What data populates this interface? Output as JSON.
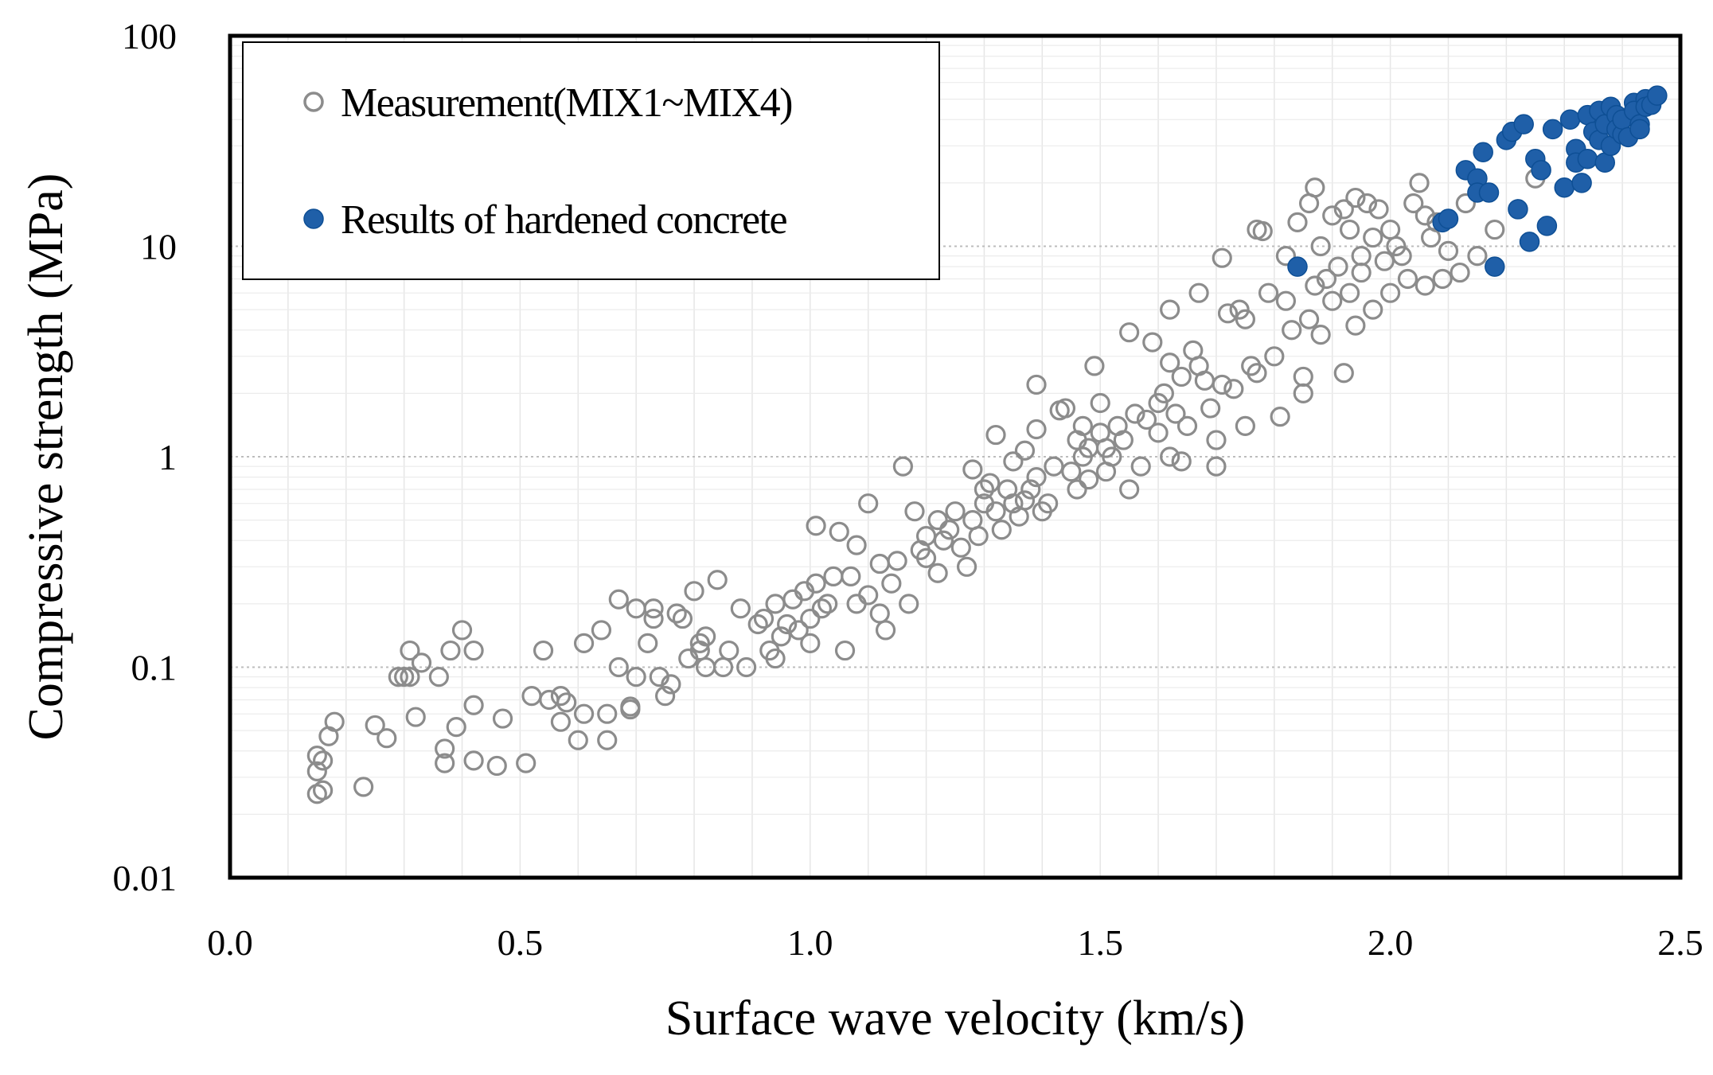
{
  "chart_data": {
    "type": "scatter",
    "title": "",
    "xlabel": "Surface wave velocity (km/s)",
    "ylabel": "Compressive strength (MPa)",
    "xlim": [
      0.0,
      2.5
    ],
    "ylim": [
      0.01,
      100
    ],
    "yscale": "log",
    "grid": true,
    "legend_position": "top-left",
    "x_ticks": [
      "0.0",
      "0.5",
      "1.0",
      "1.5",
      "2.0",
      "2.5"
    ],
    "y_ticks": [
      "0.01",
      "0.1",
      "1",
      "10",
      "100"
    ],
    "colors": {
      "measurement": "#8c8c8c",
      "hardened": "#1f5fa8"
    },
    "series": [
      {
        "name": "Measurement(MIX1~MIX4)",
        "marker": "open-circle",
        "points": [
          [
            0.15,
            0.025
          ],
          [
            0.16,
            0.026
          ],
          [
            0.15,
            0.032
          ],
          [
            0.16,
            0.036
          ],
          [
            0.15,
            0.038
          ],
          [
            0.17,
            0.047
          ],
          [
            0.18,
            0.055
          ],
          [
            0.23,
            0.027
          ],
          [
            0.25,
            0.053
          ],
          [
            0.27,
            0.046
          ],
          [
            0.29,
            0.09
          ],
          [
            0.3,
            0.09
          ],
          [
            0.31,
            0.09
          ],
          [
            0.31,
            0.12
          ],
          [
            0.33,
            0.105
          ],
          [
            0.36,
            0.09
          ],
          [
            0.32,
            0.058
          ],
          [
            0.37,
            0.035
          ],
          [
            0.37,
            0.041
          ],
          [
            0.39,
            0.052
          ],
          [
            0.4,
            0.15
          ],
          [
            0.38,
            0.12
          ],
          [
            0.42,
            0.12
          ],
          [
            0.42,
            0.066
          ],
          [
            0.42,
            0.036
          ],
          [
            0.46,
            0.034
          ],
          [
            0.47,
            0.057
          ],
          [
            0.51,
            0.035
          ],
          [
            0.52,
            0.073
          ],
          [
            0.54,
            0.12
          ],
          [
            0.55,
            0.07
          ],
          [
            0.57,
            0.055
          ],
          [
            0.57,
            0.073
          ],
          [
            0.58,
            0.068
          ],
          [
            0.6,
            0.045
          ],
          [
            0.61,
            0.13
          ],
          [
            0.61,
            0.06
          ],
          [
            0.64,
            0.15
          ],
          [
            0.65,
            0.06
          ],
          [
            0.65,
            0.045
          ],
          [
            0.67,
            0.1
          ],
          [
            0.67,
            0.21
          ],
          [
            0.69,
            0.065
          ],
          [
            0.69,
            0.063
          ],
          [
            0.7,
            0.09
          ],
          [
            0.7,
            0.19
          ],
          [
            0.72,
            0.13
          ],
          [
            0.73,
            0.17
          ],
          [
            0.73,
            0.19
          ],
          [
            0.74,
            0.09
          ],
          [
            0.75,
            0.073
          ],
          [
            0.76,
            0.083
          ],
          [
            0.77,
            0.18
          ],
          [
            0.78,
            0.17
          ],
          [
            0.79,
            0.11
          ],
          [
            0.8,
            0.23
          ],
          [
            0.81,
            0.12
          ],
          [
            0.81,
            0.13
          ],
          [
            0.82,
            0.1
          ],
          [
            0.82,
            0.14
          ],
          [
            0.84,
            0.26
          ],
          [
            0.85,
            0.1
          ],
          [
            0.86,
            0.12
          ],
          [
            0.88,
            0.19
          ],
          [
            0.89,
            0.1
          ],
          [
            0.91,
            0.16
          ],
          [
            0.92,
            0.17
          ],
          [
            0.93,
            0.12
          ],
          [
            0.94,
            0.2
          ],
          [
            0.94,
            0.11
          ],
          [
            0.95,
            0.14
          ],
          [
            0.96,
            0.16
          ],
          [
            0.97,
            0.21
          ],
          [
            0.98,
            0.15
          ],
          [
            0.99,
            0.23
          ],
          [
            1.0,
            0.17
          ],
          [
            1.01,
            0.25
          ],
          [
            1.02,
            0.19
          ],
          [
            1.03,
            0.2
          ],
          [
            1.0,
            0.13
          ],
          [
            1.01,
            0.47
          ],
          [
            1.04,
            0.27
          ],
          [
            1.05,
            0.44
          ],
          [
            1.06,
            0.12
          ],
          [
            1.07,
            0.27
          ],
          [
            1.08,
            0.2
          ],
          [
            1.08,
            0.38
          ],
          [
            1.1,
            0.22
          ],
          [
            1.1,
            0.6
          ],
          [
            1.12,
            0.18
          ],
          [
            1.12,
            0.31
          ],
          [
            1.13,
            0.15
          ],
          [
            1.14,
            0.25
          ],
          [
            1.15,
            0.32
          ],
          [
            1.16,
            0.9
          ],
          [
            1.17,
            0.2
          ],
          [
            1.18,
            0.55
          ],
          [
            1.19,
            0.36
          ],
          [
            1.2,
            0.42
          ],
          [
            1.2,
            0.33
          ],
          [
            1.22,
            0.28
          ],
          [
            1.22,
            0.5
          ],
          [
            1.23,
            0.4
          ],
          [
            1.24,
            0.45
          ],
          [
            1.25,
            0.55
          ],
          [
            1.26,
            0.37
          ],
          [
            1.27,
            0.3
          ],
          [
            1.28,
            0.5
          ],
          [
            1.28,
            0.87
          ],
          [
            1.29,
            0.42
          ],
          [
            1.3,
            0.6
          ],
          [
            1.3,
            0.7
          ],
          [
            1.31,
            0.75
          ],
          [
            1.32,
            0.55
          ],
          [
            1.32,
            1.27
          ],
          [
            1.33,
            0.45
          ],
          [
            1.34,
            0.7
          ],
          [
            1.35,
            0.95
          ],
          [
            1.35,
            0.6
          ],
          [
            1.36,
            0.52
          ],
          [
            1.37,
            0.62
          ],
          [
            1.37,
            1.07
          ],
          [
            1.38,
            0.7
          ],
          [
            1.39,
            0.8
          ],
          [
            1.39,
            2.2
          ],
          [
            1.39,
            1.35
          ],
          [
            1.4,
            0.55
          ],
          [
            1.41,
            0.6
          ],
          [
            1.42,
            0.9
          ],
          [
            1.43,
            1.66
          ],
          [
            1.44,
            1.7
          ],
          [
            1.45,
            0.85
          ],
          [
            1.46,
            1.2
          ],
          [
            1.46,
            0.7
          ],
          [
            1.47,
            1.0
          ],
          [
            1.47,
            1.4
          ],
          [
            1.48,
            1.1
          ],
          [
            1.48,
            0.78
          ],
          [
            1.49,
            2.7
          ],
          [
            1.5,
            1.3
          ],
          [
            1.5,
            1.8
          ],
          [
            1.51,
            1.1
          ],
          [
            1.51,
            0.85
          ],
          [
            1.52,
            1.0
          ],
          [
            1.53,
            1.4
          ],
          [
            1.54,
            1.2
          ],
          [
            1.55,
            0.7
          ],
          [
            1.55,
            3.9
          ],
          [
            1.56,
            1.6
          ],
          [
            1.57,
            0.9
          ],
          [
            1.58,
            1.5
          ],
          [
            1.59,
            3.5
          ],
          [
            1.6,
            1.3
          ],
          [
            1.6,
            1.8
          ],
          [
            1.61,
            2.0
          ],
          [
            1.62,
            1.0
          ],
          [
            1.62,
            5.0
          ],
          [
            1.62,
            2.8
          ],
          [
            1.63,
            1.6
          ],
          [
            1.64,
            2.4
          ],
          [
            1.64,
            0.95
          ],
          [
            1.65,
            1.4
          ],
          [
            1.66,
            3.2
          ],
          [
            1.67,
            2.7
          ],
          [
            1.67,
            6.0
          ],
          [
            1.68,
            2.3
          ],
          [
            1.69,
            1.7
          ],
          [
            1.7,
            0.9
          ],
          [
            1.7,
            1.2
          ],
          [
            1.71,
            2.2
          ],
          [
            1.71,
            8.8
          ],
          [
            1.72,
            4.8
          ],
          [
            1.73,
            2.1
          ],
          [
            1.74,
            5.0
          ],
          [
            1.75,
            1.4
          ],
          [
            1.75,
            4.5
          ],
          [
            1.76,
            2.7
          ],
          [
            1.77,
            2.5
          ],
          [
            1.77,
            12.0
          ],
          [
            1.78,
            11.8
          ],
          [
            1.79,
            6.0
          ],
          [
            1.8,
            3.0
          ],
          [
            1.81,
            1.55
          ],
          [
            1.82,
            9.0
          ],
          [
            1.82,
            5.5
          ],
          [
            1.83,
            4.0
          ],
          [
            1.84,
            13.0
          ],
          [
            1.85,
            2.0
          ],
          [
            1.85,
            2.4
          ],
          [
            1.86,
            4.5
          ],
          [
            1.86,
            16.0
          ],
          [
            1.87,
            19.0
          ],
          [
            1.87,
            6.5
          ],
          [
            1.88,
            10.0
          ],
          [
            1.88,
            3.8
          ],
          [
            1.89,
            7.0
          ],
          [
            1.9,
            14.0
          ],
          [
            1.9,
            5.5
          ],
          [
            1.91,
            8.0
          ],
          [
            1.92,
            15.0
          ],
          [
            1.92,
            2.5
          ],
          [
            1.93,
            6.0
          ],
          [
            1.93,
            12.0
          ],
          [
            1.94,
            4.2
          ],
          [
            1.94,
            17.0
          ],
          [
            1.95,
            9.0
          ],
          [
            1.95,
            7.5
          ],
          [
            1.96,
            16.0
          ],
          [
            1.97,
            11.0
          ],
          [
            1.97,
            5.0
          ],
          [
            1.98,
            15.0
          ],
          [
            1.99,
            8.5
          ],
          [
            2.0,
            12.0
          ],
          [
            2.0,
            6.0
          ],
          [
            2.01,
            10.0
          ],
          [
            2.02,
            9.0
          ],
          [
            2.03,
            7.0
          ],
          [
            2.04,
            16.0
          ],
          [
            2.05,
            20.0
          ],
          [
            2.06,
            14.0
          ],
          [
            2.06,
            6.5
          ],
          [
            2.07,
            11.0
          ],
          [
            2.08,
            13.0
          ],
          [
            2.09,
            7.0
          ],
          [
            2.1,
            9.5
          ],
          [
            2.12,
            7.5
          ],
          [
            2.13,
            16.0
          ],
          [
            2.15,
            9.0
          ],
          [
            2.18,
            12.0
          ],
          [
            2.25,
            21.0
          ]
        ]
      },
      {
        "name": "Results of hardened concrete",
        "marker": "filled-circle",
        "points": [
          [
            1.84,
            8.0
          ],
          [
            2.09,
            13.0
          ],
          [
            2.1,
            13.5
          ],
          [
            2.13,
            23.0
          ],
          [
            2.15,
            21.0
          ],
          [
            2.15,
            18.0
          ],
          [
            2.16,
            28.0
          ],
          [
            2.17,
            18.0
          ],
          [
            2.18,
            8.0
          ],
          [
            2.2,
            32.0
          ],
          [
            2.21,
            35.0
          ],
          [
            2.22,
            15.0
          ],
          [
            2.23,
            38.0
          ],
          [
            2.24,
            10.5
          ],
          [
            2.25,
            26.0
          ],
          [
            2.26,
            23.0
          ],
          [
            2.27,
            12.5
          ],
          [
            2.28,
            36.0
          ],
          [
            2.3,
            19.0
          ],
          [
            2.31,
            40.0
          ],
          [
            2.32,
            29.0
          ],
          [
            2.32,
            25.0
          ],
          [
            2.33,
            20.0
          ],
          [
            2.34,
            26.0
          ],
          [
            2.34,
            42.0
          ],
          [
            2.35,
            35.0
          ],
          [
            2.36,
            32.0
          ],
          [
            2.36,
            44.0
          ],
          [
            2.37,
            38.0
          ],
          [
            2.37,
            25.0
          ],
          [
            2.38,
            46.0
          ],
          [
            2.38,
            30.0
          ],
          [
            2.39,
            42.0
          ],
          [
            2.39,
            36.0
          ],
          [
            2.4,
            34.0
          ],
          [
            2.4,
            40.0
          ],
          [
            2.41,
            33.0
          ],
          [
            2.42,
            48.0
          ],
          [
            2.42,
            44.0
          ],
          [
            2.43,
            38.0
          ],
          [
            2.43,
            36.0
          ],
          [
            2.44,
            50.0
          ],
          [
            2.44,
            46.0
          ],
          [
            2.45,
            47.0
          ],
          [
            2.46,
            52.0
          ]
        ]
      }
    ]
  }
}
